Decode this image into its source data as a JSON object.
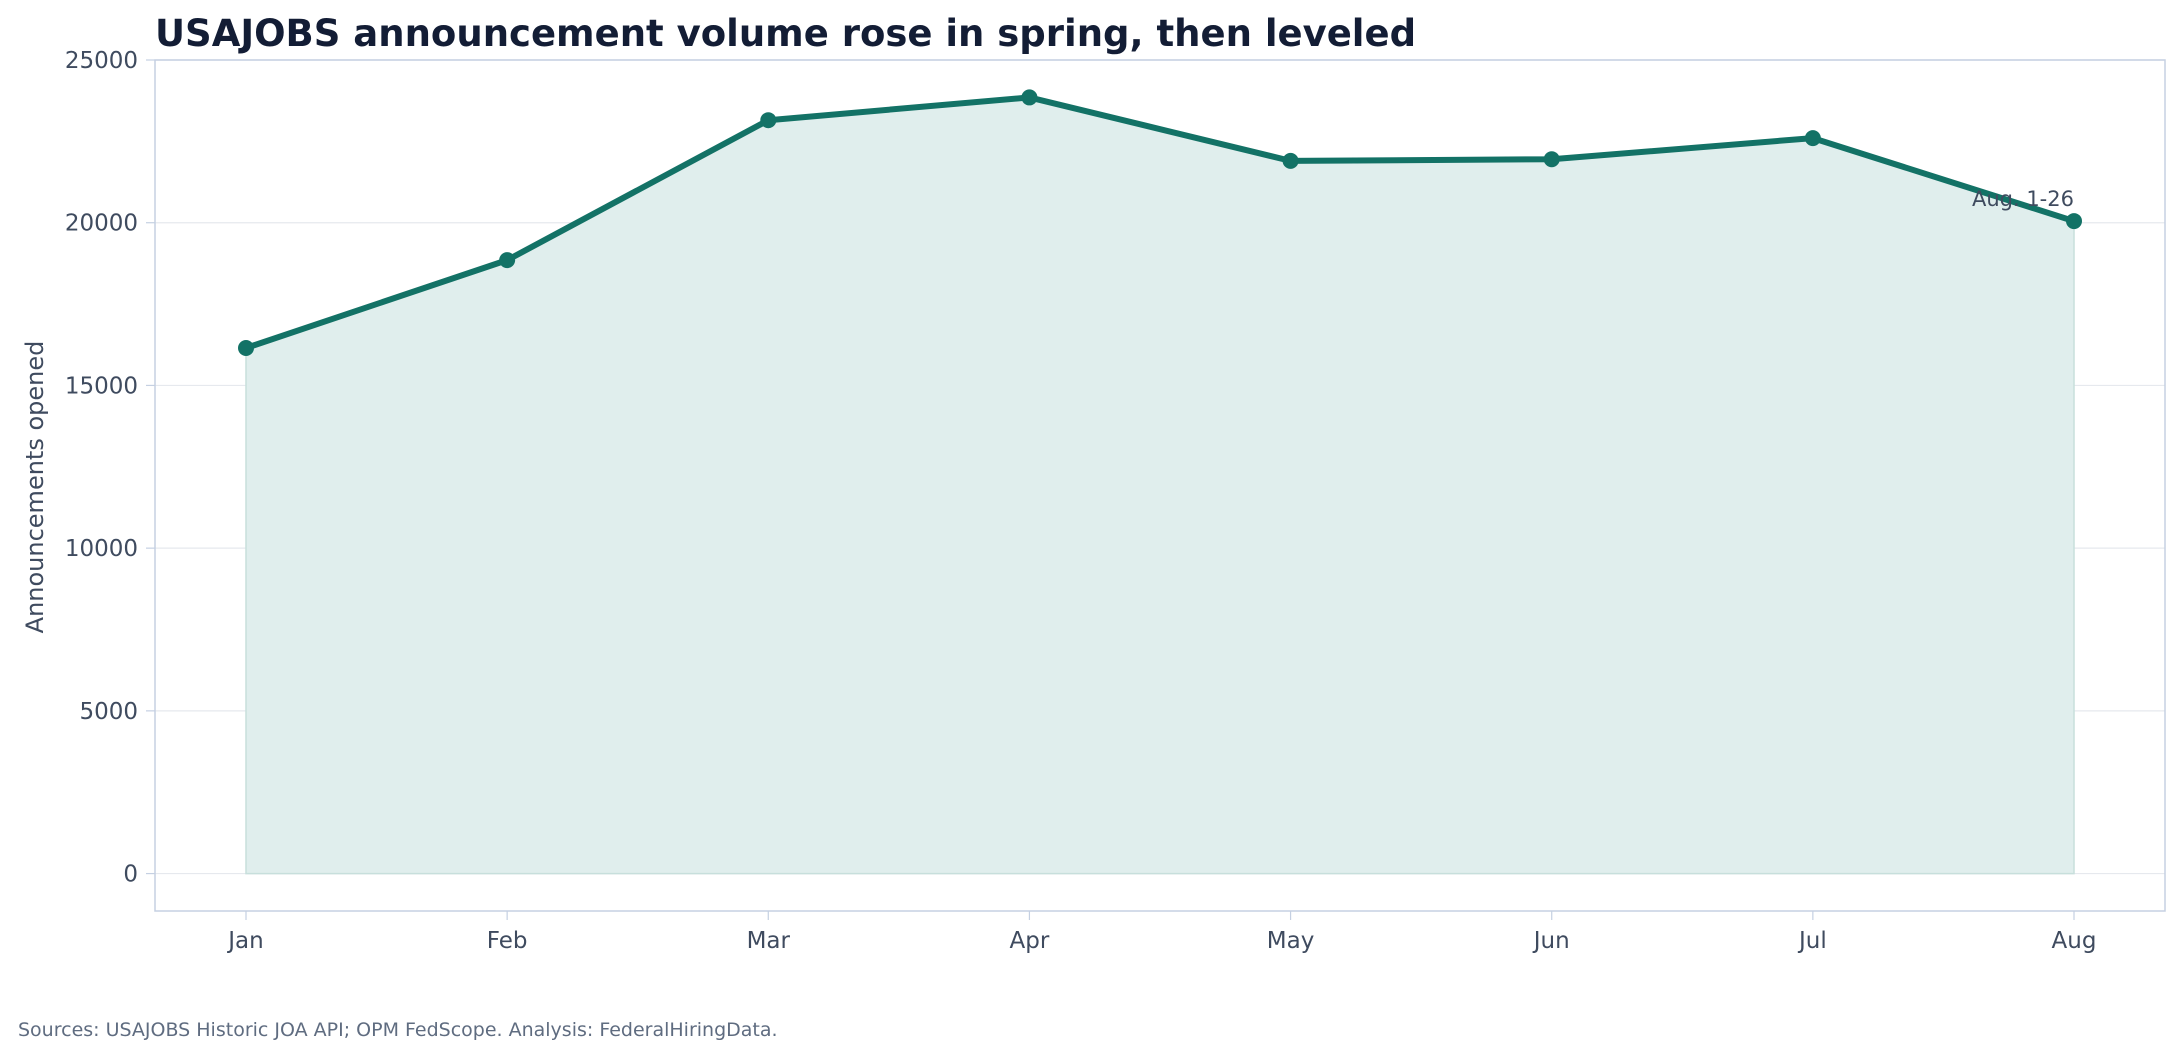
{
  "chart_data": {
    "type": "area",
    "title": "USAJOBS announcement volume rose in spring, then leveled",
    "xlabel": "",
    "ylabel": "Announcements opened",
    "categories": [
      "Jan",
      "Feb",
      "Mar",
      "Apr",
      "May",
      "Jun",
      "Jul",
      "Aug"
    ],
    "series": [
      {
        "values": [
          16150,
          18850,
          23150,
          23850,
          21900,
          21950,
          22600,
          20050
        ]
      }
    ],
    "ylim": [
      -1150,
      25000
    ],
    "yticks": [
      "0",
      "5000",
      "10000",
      "15000",
      "20000",
      "25000"
    ],
    "grid": "horizontal",
    "annotations": [
      {
        "text": "Aug. 1-26",
        "category": "Aug"
      }
    ],
    "colors": {
      "line": "#137266",
      "fill": "#e0eeed",
      "grid": "#e6e9ee",
      "frame": "#c5d0e2"
    }
  },
  "footer": {
    "source": "Sources: USAJOBS Historic JOA API; OPM FedScope. Analysis: FederalHiringData."
  }
}
